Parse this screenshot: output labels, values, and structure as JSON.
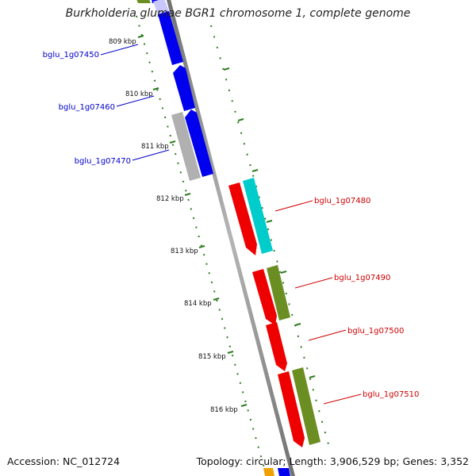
{
  "header": {
    "title": "Burkholderia glumae BGR1 chromosome 1, complete genome"
  },
  "footer": {
    "accession": "Accession: NC_012724",
    "summary": "Topology: circular; Length: 3,906,529 bp; Genes: 3,352"
  },
  "colors": {
    "backbone": "#8c8c8c",
    "tick": "#2e7d1f",
    "label_left": "#0000cc",
    "label_right": "#cc0000",
    "forward_cds": "#0000ee",
    "reverse_cds": "#ee0000",
    "cyan_feature": "#00cccc",
    "olive_feature": "#6b8e23",
    "gray_feature": "#b0b0b0"
  },
  "scale_labels": [
    "809 kbp",
    "810 kbp",
    "811 kbp",
    "812 kbp",
    "813 kbp",
    "814 kbp",
    "815 kbp",
    "816 kbp"
  ],
  "left_genes": [
    "bglu_1g07450",
    "bglu_1g07460",
    "bglu_1g07470"
  ],
  "right_genes": [
    "bglu_1g07480",
    "bglu_1g07490",
    "bglu_1g07500",
    "bglu_1g07510"
  ]
}
